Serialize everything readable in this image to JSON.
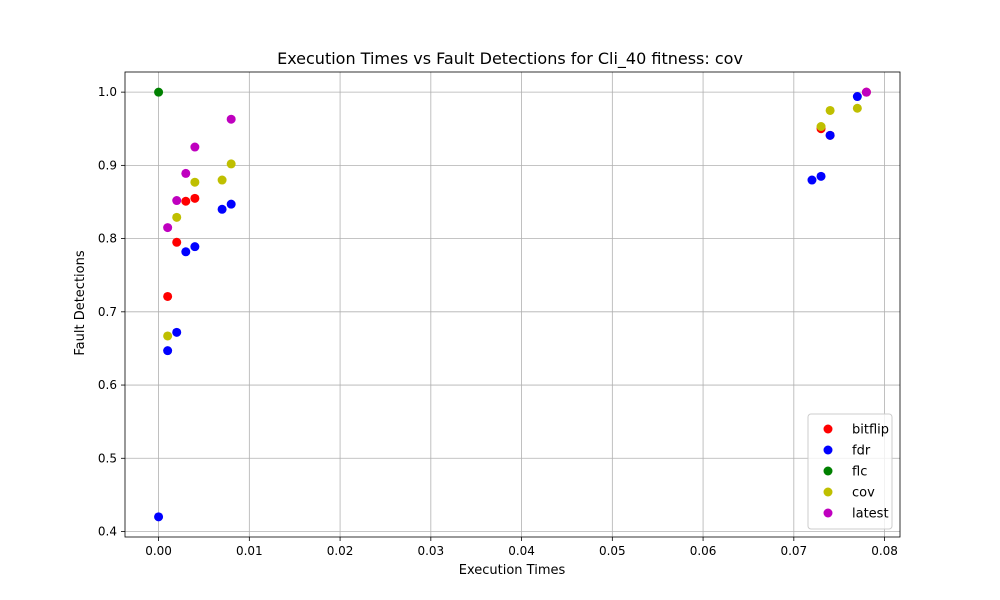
{
  "chart_data": {
    "type": "scatter",
    "title": "Execution Times vs Fault Detections for Cli_40 fitness: cov",
    "xlabel": "Execution Times",
    "ylabel": "Fault Detections",
    "xlim": [
      -0.0037,
      0.0817
    ],
    "ylim": [
      0.3925,
      1.0275
    ],
    "xticks": [
      0.0,
      0.01,
      0.02,
      0.03,
      0.04,
      0.05,
      0.06,
      0.07,
      0.08
    ],
    "xtick_labels": [
      "0.00",
      "0.01",
      "0.02",
      "0.03",
      "0.04",
      "0.05",
      "0.06",
      "0.07",
      "0.08"
    ],
    "yticks": [
      0.4,
      0.5,
      0.6,
      0.7,
      0.8,
      0.9,
      1.0
    ],
    "ytick_labels": [
      "0.4",
      "0.5",
      "0.6",
      "0.7",
      "0.8",
      "0.9",
      "1.0"
    ],
    "grid": true,
    "legend_position": "bottom-right",
    "series": [
      {
        "name": "bitflip",
        "color": "#ff0000",
        "points": [
          [
            0.001,
            0.721
          ],
          [
            0.002,
            0.795
          ],
          [
            0.003,
            0.851
          ],
          [
            0.004,
            0.855
          ],
          [
            0.073,
            0.95
          ],
          [
            0.074,
            0.941
          ],
          [
            0.078,
            1.0
          ]
        ]
      },
      {
        "name": "fdr",
        "color": "#0000ff",
        "points": [
          [
            0.0,
            0.42
          ],
          [
            0.001,
            0.647
          ],
          [
            0.002,
            0.672
          ],
          [
            0.003,
            0.782
          ],
          [
            0.004,
            0.789
          ],
          [
            0.007,
            0.84
          ],
          [
            0.008,
            0.847
          ],
          [
            0.072,
            0.88
          ],
          [
            0.073,
            0.885
          ],
          [
            0.074,
            0.941
          ],
          [
            0.077,
            0.994
          ]
        ]
      },
      {
        "name": "flc",
        "color": "#008000",
        "points": [
          [
            0.0,
            1.0
          ]
        ]
      },
      {
        "name": "cov",
        "color": "#bfbf00",
        "points": [
          [
            0.001,
            0.667
          ],
          [
            0.002,
            0.829
          ],
          [
            0.004,
            0.877
          ],
          [
            0.007,
            0.88
          ],
          [
            0.008,
            0.902
          ],
          [
            0.073,
            0.953
          ],
          [
            0.074,
            0.975
          ],
          [
            0.077,
            0.978
          ]
        ]
      },
      {
        "name": "latest",
        "color": "#bf00bf",
        "points": [
          [
            0.001,
            0.815
          ],
          [
            0.002,
            0.852
          ],
          [
            0.003,
            0.889
          ],
          [
            0.004,
            0.925
          ],
          [
            0.008,
            0.963
          ],
          [
            0.078,
            1.0
          ]
        ]
      }
    ]
  }
}
